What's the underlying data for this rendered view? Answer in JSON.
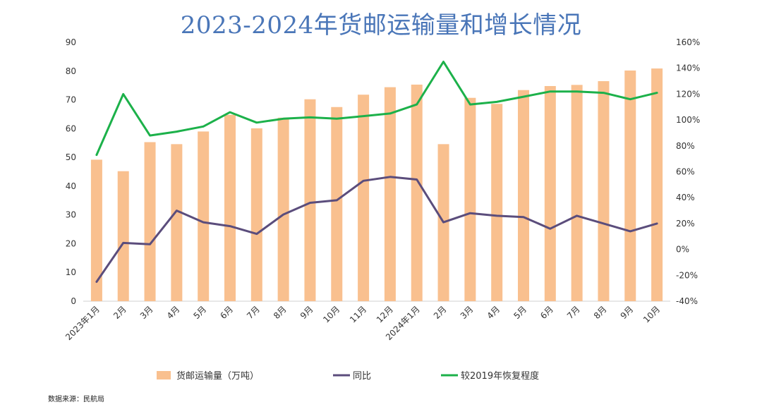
{
  "chart_data": {
    "type": "bar",
    "title": "2023-2024年货邮运输量和增长情况",
    "categories": [
      "2023年1月",
      "2月",
      "3月",
      "4月",
      "5月",
      "6月",
      "7月",
      "8月",
      "9月",
      "10月",
      "11月",
      "12月",
      "2024年1月",
      "2月",
      "3月",
      "4月",
      "5月",
      "6月",
      "7月",
      "8月",
      "9月",
      "10月"
    ],
    "ylim_left": [
      0,
      90
    ],
    "ylim_right": [
      -40,
      160
    ],
    "left_ticks": [
      "0",
      "10",
      "20",
      "30",
      "40",
      "50",
      "60",
      "70",
      "80",
      "90"
    ],
    "right_ticks": [
      "-40%",
      "-20%",
      "0%",
      "20%",
      "40%",
      "60%",
      "80%",
      "100%",
      "120%",
      "140%",
      "160%"
    ],
    "grid": false,
    "legend_position": "bottom",
    "series": [
      {
        "name": "货邮运输量（万吨）",
        "type": "bar",
        "axis": "left",
        "color": "#f9c08f",
        "values": [
          49.2,
          45.2,
          55.3,
          54.6,
          59.0,
          64.8,
          60.1,
          63.8,
          70.2,
          67.5,
          71.8,
          74.4,
          75.3,
          54.6,
          70.7,
          68.6,
          73.4,
          74.8,
          75.2,
          76.5,
          80.2,
          80.9
        ]
      },
      {
        "name": "同比",
        "type": "line",
        "axis": "right",
        "color": "#5b4d7c",
        "values": [
          -25,
          5,
          4,
          30,
          21,
          18,
          12,
          27,
          36,
          38,
          53,
          56,
          54,
          21,
          28,
          26,
          25,
          16,
          26,
          20,
          14,
          20
        ]
      },
      {
        "name": "较2019年恢复程度",
        "type": "line",
        "axis": "right",
        "color": "#1cb14a",
        "values": [
          73,
          120,
          88,
          91,
          95,
          106,
          98,
          101,
          102,
          101,
          103,
          105,
          112,
          145,
          112,
          114,
          118,
          122,
          122,
          121,
          116,
          121
        ]
      }
    ]
  },
  "source_note": "数据来源：民航局"
}
